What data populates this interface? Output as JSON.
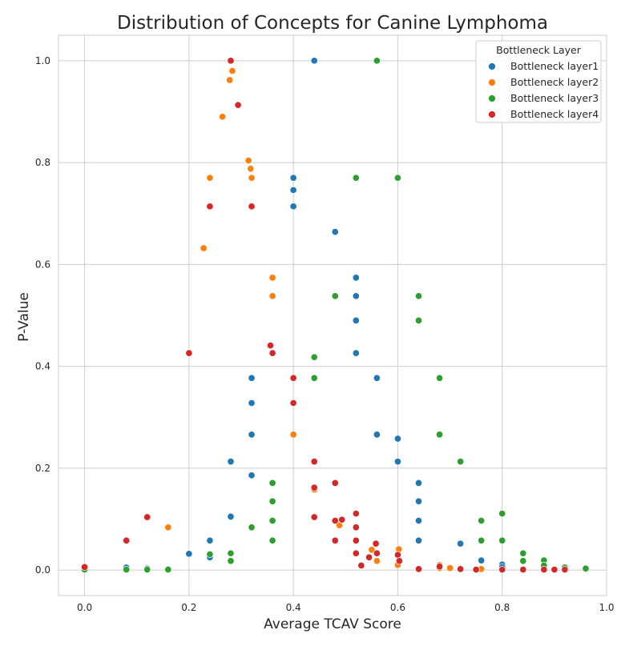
{
  "chart_data": {
    "type": "scatter",
    "title": "Distribution of Concepts for Canine Lymphoma",
    "xlabel": "Average TCAV Score",
    "ylabel": "P-Value",
    "xlim": [
      -0.05,
      1.0
    ],
    "ylim": [
      -0.05,
      1.05
    ],
    "xticks": [
      "0.0",
      "0.2",
      "0.4",
      "0.6",
      "0.8",
      "1.0"
    ],
    "yticks": [
      "0.0",
      "0.2",
      "0.4",
      "0.6",
      "0.8",
      "1.0"
    ],
    "grid": true,
    "legend": {
      "title": "Bottleneck Layer",
      "placement": "top-right"
    },
    "series": [
      {
        "name": "Bottleneck layer1",
        "color": "#1f77b4",
        "points": [
          [
            0.0,
            0.003
          ],
          [
            0.08,
            0.005
          ],
          [
            0.12,
            0.003
          ],
          [
            0.16,
            0.002
          ],
          [
            0.2,
            0.032
          ],
          [
            0.24,
            0.025
          ],
          [
            0.24,
            0.058
          ],
          [
            0.28,
            0.105
          ],
          [
            0.28,
            0.213
          ],
          [
            0.32,
            0.186
          ],
          [
            0.32,
            0.266
          ],
          [
            0.32,
            0.328
          ],
          [
            0.32,
            0.377
          ],
          [
            0.4,
            0.714
          ],
          [
            0.4,
            0.746
          ],
          [
            0.4,
            0.77
          ],
          [
            0.44,
            1.0
          ],
          [
            0.48,
            0.664
          ],
          [
            0.52,
            0.574
          ],
          [
            0.52,
            0.538
          ],
          [
            0.52,
            0.49
          ],
          [
            0.52,
            0.426
          ],
          [
            0.56,
            0.377
          ],
          [
            0.56,
            0.266
          ],
          [
            0.6,
            0.258
          ],
          [
            0.6,
            0.213
          ],
          [
            0.64,
            0.171
          ],
          [
            0.64,
            0.135
          ],
          [
            0.64,
            0.097
          ],
          [
            0.64,
            0.058
          ],
          [
            0.68,
            0.005
          ],
          [
            0.72,
            0.052
          ],
          [
            0.76,
            0.019
          ],
          [
            0.8,
            0.011
          ],
          [
            0.8,
            0.006
          ],
          [
            0.88,
            0.005
          ]
        ]
      },
      {
        "name": "Bottleneck layer2",
        "color": "#ff7f0e",
        "points": [
          [
            0.16,
            0.084
          ],
          [
            0.228,
            0.632
          ],
          [
            0.24,
            0.77
          ],
          [
            0.264,
            0.89
          ],
          [
            0.278,
            0.962
          ],
          [
            0.283,
            0.98
          ],
          [
            0.314,
            0.804
          ],
          [
            0.318,
            0.788
          ],
          [
            0.32,
            0.77
          ],
          [
            0.36,
            0.574
          ],
          [
            0.36,
            0.538
          ],
          [
            0.4,
            0.266
          ],
          [
            0.44,
            0.158
          ],
          [
            0.488,
            0.088
          ],
          [
            0.55,
            0.04
          ],
          [
            0.56,
            0.018
          ],
          [
            0.6,
            0.01
          ],
          [
            0.602,
            0.041
          ],
          [
            0.68,
            0.01
          ],
          [
            0.68,
            0.004
          ],
          [
            0.7,
            0.004
          ],
          [
            0.76,
            0.002
          ]
        ]
      },
      {
        "name": "Bottleneck layer3",
        "color": "#2ca02c",
        "points": [
          [
            0.0,
            0.001
          ],
          [
            0.08,
            0.001
          ],
          [
            0.12,
            0.001
          ],
          [
            0.16,
            0.001
          ],
          [
            0.24,
            0.031
          ],
          [
            0.28,
            0.033
          ],
          [
            0.28,
            0.018
          ],
          [
            0.32,
            0.084
          ],
          [
            0.36,
            0.171
          ],
          [
            0.36,
            0.135
          ],
          [
            0.36,
            0.097
          ],
          [
            0.36,
            0.058
          ],
          [
            0.44,
            0.418
          ],
          [
            0.44,
            0.377
          ],
          [
            0.48,
            0.538
          ],
          [
            0.52,
            0.77
          ],
          [
            0.56,
            1.0
          ],
          [
            0.6,
            0.77
          ],
          [
            0.64,
            0.538
          ],
          [
            0.64,
            0.49
          ],
          [
            0.68,
            0.377
          ],
          [
            0.68,
            0.266
          ],
          [
            0.72,
            0.213
          ],
          [
            0.76,
            0.097
          ],
          [
            0.76,
            0.058
          ],
          [
            0.8,
            0.111
          ],
          [
            0.8,
            0.058
          ],
          [
            0.84,
            0.033
          ],
          [
            0.84,
            0.018
          ],
          [
            0.88,
            0.019
          ],
          [
            0.88,
            0.009
          ],
          [
            0.92,
            0.005
          ],
          [
            0.96,
            0.003
          ]
        ]
      },
      {
        "name": "Bottleneck layer4",
        "color": "#d62728",
        "points": [
          [
            0.0,
            0.006
          ],
          [
            0.08,
            0.058
          ],
          [
            0.12,
            0.104
          ],
          [
            0.2,
            0.426
          ],
          [
            0.24,
            0.714
          ],
          [
            0.28,
            1.0
          ],
          [
            0.294,
            0.913
          ],
          [
            0.32,
            0.714
          ],
          [
            0.356,
            0.441
          ],
          [
            0.36,
            0.426
          ],
          [
            0.4,
            0.377
          ],
          [
            0.4,
            0.328
          ],
          [
            0.44,
            0.213
          ],
          [
            0.44,
            0.162
          ],
          [
            0.44,
            0.104
          ],
          [
            0.48,
            0.171
          ],
          [
            0.48,
            0.097
          ],
          [
            0.48,
            0.058
          ],
          [
            0.493,
            0.099
          ],
          [
            0.52,
            0.111
          ],
          [
            0.52,
            0.084
          ],
          [
            0.52,
            0.058
          ],
          [
            0.52,
            0.033
          ],
          [
            0.53,
            0.009
          ],
          [
            0.545,
            0.025
          ],
          [
            0.558,
            0.052
          ],
          [
            0.56,
            0.033
          ],
          [
            0.6,
            0.03
          ],
          [
            0.603,
            0.018
          ],
          [
            0.64,
            0.002
          ],
          [
            0.68,
            0.007
          ],
          [
            0.72,
            0.002
          ],
          [
            0.75,
            0.001
          ],
          [
            0.8,
            0.001
          ],
          [
            0.84,
            0.001
          ],
          [
            0.88,
            0.001
          ],
          [
            0.9,
            0.001
          ],
          [
            0.92,
            0.001
          ]
        ]
      }
    ]
  }
}
